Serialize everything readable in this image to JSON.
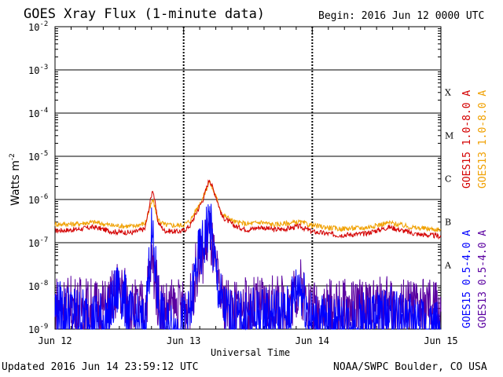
{
  "header": {
    "title": "GOES Xray Flux (1-minute data)",
    "begin": "Begin:  2016 Jun 12 0000 UTC"
  },
  "footer": {
    "updated": "Updated 2016 Jun 14 23:59:12 UTC",
    "credit": "NOAA/SWPC Boulder, CO USA"
  },
  "chart_data": {
    "type": "line",
    "title": "GOES Xray Flux (1-minute data)",
    "xlabel": "Universal Time",
    "ylabel": "Watts m",
    "ylabel_sup": "-2",
    "yscale": "log",
    "ylim": [
      1e-09,
      0.01
    ],
    "ytick_labels": [
      {
        "mant": "10",
        "exp": "-9",
        "value": 1e-09
      },
      {
        "mant": "10",
        "exp": "-8",
        "value": 1e-08
      },
      {
        "mant": "10",
        "exp": "-7",
        "value": 1e-07
      },
      {
        "mant": "10",
        "exp": "-6",
        "value": 1e-06
      },
      {
        "mant": "10",
        "exp": "-5",
        "value": 1e-05
      },
      {
        "mant": "10",
        "exp": "-4",
        "value": 0.0001
      },
      {
        "mant": "10",
        "exp": "-3",
        "value": 0.001
      },
      {
        "mant": "10",
        "exp": "-2",
        "value": 0.01
      }
    ],
    "xticks": [
      "Jun 12",
      "Jun 13",
      "Jun 14",
      "Jun 15"
    ],
    "flare_classes": [
      {
        "label": "A",
        "value": 1e-08
      },
      {
        "label": "B",
        "value": 1e-07
      },
      {
        "label": "C",
        "value": 1e-06
      },
      {
        "label": "M",
        "value": 1e-05
      },
      {
        "label": "X",
        "value": 0.0001
      }
    ],
    "series": [
      {
        "name": "GOES15 1.0-8.0 A",
        "color": "#d40000",
        "x": [
          0,
          0.15,
          0.3,
          0.45,
          0.6,
          0.7,
          0.76,
          0.8,
          0.85,
          0.95,
          1.0,
          1.05,
          1.1,
          1.15,
          1.2,
          1.25,
          1.3,
          1.4,
          1.5,
          1.6,
          1.7,
          1.8,
          1.9,
          2.0,
          2.2,
          2.4,
          2.6,
          2.8,
          3.0
        ],
        "y": [
          1.9e-07,
          2e-07,
          2.3e-07,
          1.8e-07,
          1.7e-07,
          2.1e-07,
          1.8e-06,
          3e-07,
          1.9e-07,
          1.8e-07,
          1.9e-07,
          2.5e-07,
          5e-07,
          1e-06,
          3e-06,
          1.2e-06,
          4e-07,
          2.4e-07,
          2e-07,
          2.3e-07,
          2e-07,
          2.1e-07,
          2.4e-07,
          1.8e-07,
          1.5e-07,
          1.6e-07,
          2.3e-07,
          1.6e-07,
          1.4e-07
        ]
      },
      {
        "name": "GOES13 1.0-8.0 A",
        "color": "#f0a000",
        "x": [
          0,
          0.15,
          0.3,
          0.45,
          0.6,
          0.7,
          0.76,
          0.8,
          0.85,
          0.95,
          1.0,
          1.05,
          1.1,
          1.15,
          1.2,
          1.25,
          1.3,
          1.4,
          1.5,
          1.6,
          1.7,
          1.8,
          1.9,
          2.0,
          2.2,
          2.4,
          2.6,
          2.8,
          3.0
        ],
        "y": [
          2.7e-07,
          2.7e-07,
          3e-07,
          2.5e-07,
          2.4e-07,
          2.8e-07,
          1e-06,
          3.5e-07,
          2.6e-07,
          2.5e-07,
          2.6e-07,
          3.2e-07,
          6e-07,
          1.1e-06,
          2.6e-06,
          1.2e-06,
          4.5e-07,
          3e-07,
          2.7e-07,
          3e-07,
          2.6e-07,
          2.8e-07,
          3e-07,
          2.5e-07,
          2.1e-07,
          2.2e-07,
          2.9e-07,
          2.2e-07,
          2e-07
        ]
      },
      {
        "name": "GOES15 0.5-4.0 A",
        "color": "#0000ff",
        "x": [
          0,
          0.2,
          0.4,
          0.5,
          0.6,
          0.7,
          0.75,
          0.78,
          0.8,
          0.85,
          0.95,
          1.05,
          1.1,
          1.15,
          1.2,
          1.25,
          1.3,
          1.4,
          1.6,
          1.8,
          1.9,
          2.0,
          2.2,
          2.4,
          2.6,
          2.8,
          3.0
        ],
        "y": [
          3e-09,
          2e-09,
          1.5e-09,
          1e-08,
          1.5e-09,
          1.2e-09,
          1.5e-07,
          2.5e-08,
          5e-09,
          1e-09,
          1e-09,
          2e-09,
          3e-08,
          8e-08,
          3.5e-07,
          2e-08,
          3e-09,
          1.5e-09,
          2e-09,
          2e-09,
          1.2e-08,
          1.5e-09,
          1.2e-09,
          1.5e-09,
          2e-09,
          1.2e-09,
          1.1e-09
        ]
      },
      {
        "name": "GOES13 0.5-4.0 A",
        "color": "#5a00a0",
        "x": [
          0,
          0.2,
          0.4,
          0.5,
          0.6,
          0.7,
          0.75,
          0.78,
          0.8,
          0.85,
          0.95,
          1.05,
          1.1,
          1.15,
          1.2,
          1.25,
          1.3,
          1.4,
          1.6,
          1.8,
          1.9,
          2.0,
          2.2,
          2.4,
          2.6,
          2.8,
          3.0
        ],
        "y": [
          4e-09,
          3.5e-09,
          3e-09,
          1e-08,
          3e-09,
          3e-09,
          4e-08,
          1.5e-08,
          5e-09,
          3e-09,
          3e-09,
          3.5e-09,
          2.5e-08,
          5e-08,
          2e-07,
          2e-08,
          4e-09,
          3e-09,
          3.5e-09,
          3.5e-09,
          1e-08,
          3e-09,
          3e-09,
          3e-09,
          3.5e-09,
          3e-09,
          3e-09
        ]
      }
    ]
  }
}
